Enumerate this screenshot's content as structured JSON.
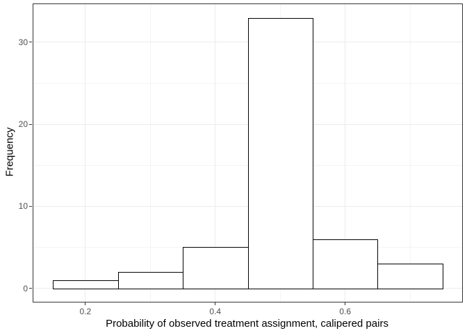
{
  "chart_data": {
    "type": "bar",
    "subtype": "histogram",
    "title": "",
    "xlabel": "Probability of observed treatment assignment, calipered pairs",
    "ylabel": "Frequency",
    "bins": [
      {
        "x0": 0.15,
        "x1": 0.25,
        "count": 1
      },
      {
        "x0": 0.25,
        "x1": 0.35,
        "count": 2
      },
      {
        "x0": 0.35,
        "x1": 0.45,
        "count": 5
      },
      {
        "x0": 0.45,
        "x1": 0.55,
        "count": 33
      },
      {
        "x0": 0.55,
        "x1": 0.65,
        "count": 6
      },
      {
        "x0": 0.65,
        "x1": 0.75,
        "count": 3
      }
    ],
    "x_ticks": [
      {
        "value": 0.2,
        "label": "0.2"
      },
      {
        "value": 0.4,
        "label": "0.4"
      },
      {
        "value": 0.6,
        "label": "0.6"
      }
    ],
    "y_ticks": [
      {
        "value": 0,
        "label": "0"
      },
      {
        "value": 10,
        "label": "10"
      },
      {
        "value": 20,
        "label": "20"
      },
      {
        "value": 30,
        "label": "30"
      }
    ],
    "x_minor_gridlines": [
      0.3,
      0.5,
      0.7
    ],
    "y_minor_gridlines": [
      5,
      15,
      25
    ],
    "xlim": [
      0.12,
      0.78
    ],
    "ylim": [
      -1.65,
      34.65
    ],
    "grid": true,
    "legend_position": "none",
    "colors": {
      "panel_background": "#ffffff",
      "panel_border": "#333333",
      "grid_major": "#ebebeb",
      "grid_minor": "#f4f4f4",
      "bar_fill": "#ffffff",
      "bar_stroke": "#000000",
      "tick_label": "#4d4d4d",
      "axis_title": "#000000",
      "tick_mark": "#333333"
    }
  }
}
